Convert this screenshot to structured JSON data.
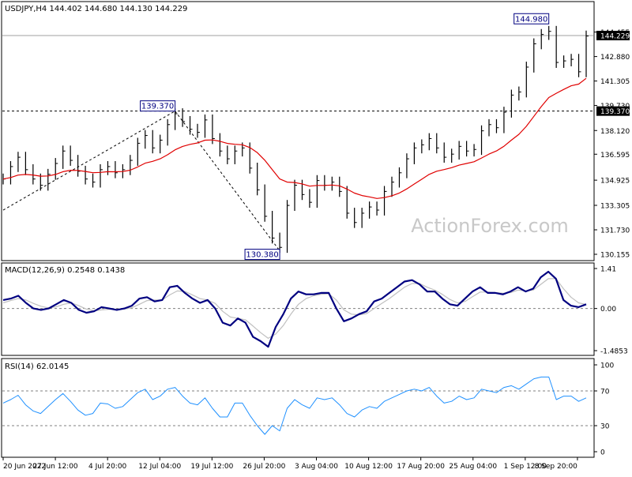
{
  "colors": {
    "price": "#000000",
    "ma": "#e00000",
    "macd": "#000080",
    "signal": "#c0c0c0",
    "rsi": "#1e90ff",
    "grid": "#808080",
    "frame": "#000000",
    "label_bg": "#ffffff",
    "tag_text": "#000080"
  },
  "chart_data": [
    {
      "type": "line",
      "panel": "price",
      "title": "USDJPY,H4  144.402 144.680 144.130 144.229",
      "ylim": [
        130.155,
        145.4
      ],
      "yticks": [
        "144.455",
        "142.880",
        "141.305",
        "139.730",
        "138.120",
        "136.595",
        "134.925",
        "133.305",
        "131.730",
        "130.155"
      ],
      "last_price": "144.229",
      "hline_level": "139.370",
      "annotations": [
        {
          "label": "144.980",
          "value": 144.98
        },
        {
          "label": "139.370",
          "value": 139.37
        },
        {
          "label": "130.380",
          "value": 130.38
        }
      ],
      "series": [
        {
          "values": [
            135.0,
            135.8,
            136.4,
            135.6,
            135.0,
            134.6,
            135.3,
            136.0,
            136.8,
            136.2,
            135.5,
            135.0,
            134.8,
            135.6,
            135.8,
            135.4,
            135.6,
            136.2,
            137.3,
            137.8,
            137.0,
            137.5,
            138.5,
            139.2,
            138.7,
            138.2,
            138.0,
            138.8,
            137.6,
            136.8,
            136.3,
            136.8,
            137.0,
            135.7,
            134.3,
            132.6,
            131.2,
            130.6,
            133.3,
            134.6,
            134.0,
            133.5,
            134.9,
            134.6,
            134.8,
            134.2,
            132.8,
            132.2,
            132.8,
            133.2,
            133.0,
            134.2,
            134.8,
            135.4,
            136.3,
            137.0,
            137.2,
            137.6,
            137.0,
            136.4,
            136.6,
            137.1,
            136.8,
            136.9,
            138.1,
            138.5,
            138.3,
            139.3,
            140.4,
            140.6,
            142.2,
            143.7,
            144.3,
            144.5,
            142.5,
            142.6,
            142.7,
            141.9,
            144.2
          ]
        }
      ]
    },
    {
      "type": "line",
      "panel": "macd",
      "title": "MACD(12,26,9) 0.2548 0.1438",
      "ylim": [
        -1.4853,
        1.41
      ],
      "yticks": [
        "1.41",
        "0.00",
        "-1.4853"
      ],
      "series": [
        {
          "values": [
            0.3,
            0.35,
            0.45,
            0.2,
            0.0,
            -0.05,
            0.0,
            0.15,
            0.3,
            0.2,
            -0.05,
            -0.15,
            -0.1,
            0.05,
            0.0,
            -0.05,
            0.0,
            0.1,
            0.35,
            0.4,
            0.25,
            0.3,
            0.75,
            0.8,
            0.55,
            0.35,
            0.2,
            0.3,
            0.0,
            -0.5,
            -0.6,
            -0.35,
            -0.5,
            -1.0,
            -1.15,
            -1.35,
            -0.65,
            -0.2,
            0.35,
            0.6,
            0.5,
            0.5,
            0.55,
            0.55,
            0.0,
            -0.45,
            -0.35,
            -0.2,
            -0.1,
            0.25,
            0.35,
            0.55,
            0.75,
            0.95,
            1.0,
            0.85,
            0.6,
            0.6,
            0.35,
            0.15,
            0.1,
            0.35,
            0.6,
            0.75,
            0.55,
            0.55,
            0.5,
            0.6,
            0.75,
            0.6,
            0.7,
            1.1,
            1.3,
            1.05,
            0.3,
            0.1,
            0.05,
            0.15
          ]
        },
        {
          "values": [
            0.2,
            0.28,
            0.35,
            0.3,
            0.18,
            0.08,
            0.02,
            0.06,
            0.15,
            0.2,
            0.1,
            -0.02,
            -0.08,
            -0.05,
            -0.03,
            -0.03,
            -0.02,
            0.03,
            0.15,
            0.28,
            0.3,
            0.3,
            0.48,
            0.62,
            0.6,
            0.48,
            0.35,
            0.3,
            0.18,
            -0.1,
            -0.3,
            -0.35,
            -0.4,
            -0.62,
            -0.85,
            -1.05,
            -0.9,
            -0.6,
            -0.2,
            0.15,
            0.35,
            0.45,
            0.5,
            0.52,
            0.3,
            -0.05,
            -0.2,
            -0.22,
            -0.18,
            0.0,
            0.18,
            0.35,
            0.55,
            0.75,
            0.88,
            0.88,
            0.75,
            0.65,
            0.5,
            0.32,
            0.2,
            0.25,
            0.42,
            0.58,
            0.58,
            0.56,
            0.54,
            0.56,
            0.65,
            0.62,
            0.65,
            0.85,
            1.05,
            1.05,
            0.7,
            0.4,
            0.2,
            0.14
          ]
        }
      ]
    },
    {
      "type": "line",
      "panel": "rsi",
      "title": "RSI(14) 62.0145",
      "ylim": [
        0,
        100
      ],
      "yticks": [
        "100",
        "70",
        "30",
        "0"
      ],
      "levels": [
        70,
        30
      ],
      "series": [
        {
          "values": [
            56,
            60,
            65,
            54,
            47,
            44,
            52,
            60,
            67,
            58,
            48,
            42,
            44,
            56,
            55,
            50,
            52,
            60,
            68,
            72,
            60,
            64,
            72,
            74,
            64,
            56,
            54,
            62,
            50,
            40,
            40,
            56,
            56,
            42,
            30,
            20,
            30,
            24,
            50,
            60,
            54,
            50,
            62,
            60,
            62,
            54,
            44,
            40,
            48,
            52,
            50,
            58,
            62,
            66,
            70,
            72,
            70,
            74,
            64,
            56,
            58,
            64,
            60,
            62,
            72,
            70,
            68,
            74,
            76,
            72,
            78,
            84,
            86,
            86,
            60,
            64,
            64,
            58,
            62
          ]
        }
      ]
    }
  ],
  "x_axis": {
    "labels": [
      "20 Jun 2022",
      "27 Jun 12:00",
      "4 Jul 20:00",
      "12 Jul 04:00",
      "19 Jul 12:00",
      "26 Jul 20:00",
      "3 Aug 04:00",
      "10 Aug 12:00",
      "17 Aug 20:00",
      "25 Aug 04:00",
      "1 Sep 12:00",
      "8 Sep 20:00"
    ]
  },
  "watermark": "ActionForex.com"
}
